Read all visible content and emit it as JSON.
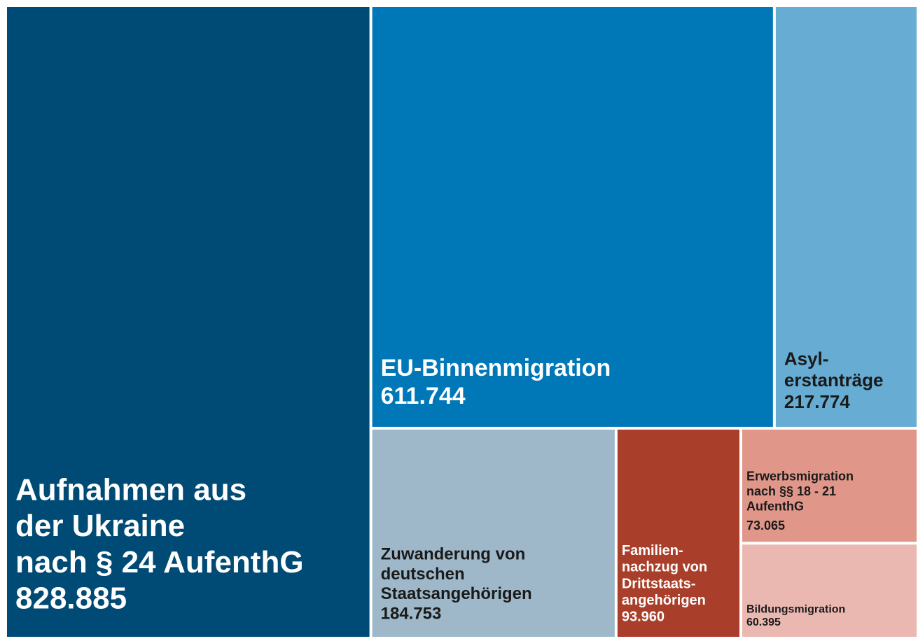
{
  "chart_data": {
    "type": "treemap",
    "categories": [
      [
        "Aufnahmen aus",
        "der Ukraine",
        "nach § 24 AufenthG"
      ],
      [
        "EU-Binnenmigration"
      ],
      [
        "Asyl-",
        "erstanträge"
      ],
      [
        "Zuwanderung von",
        "deutschen",
        "Staatsangehörigen"
      ],
      [
        "Familien-",
        "nachzug von",
        "Drittstaats-",
        "angehörigen"
      ],
      [
        "Erwerbsmigration",
        "nach §§ 18 - 21",
        "AufenthG"
      ],
      [
        "Bildungsmigration"
      ]
    ],
    "values": [
      828885,
      611744,
      217774,
      184753,
      93960,
      73065,
      60395
    ],
    "value_labels": [
      "828.885",
      "611.744",
      "217.774",
      "184.753",
      "93.960",
      "73.065",
      "60.395"
    ],
    "colors": [
      "#004b76",
      "#0077b6",
      "#66acd3",
      "#9eb8c9",
      "#a93f2a",
      "#e0978a",
      "#ebb8b1"
    ]
  }
}
